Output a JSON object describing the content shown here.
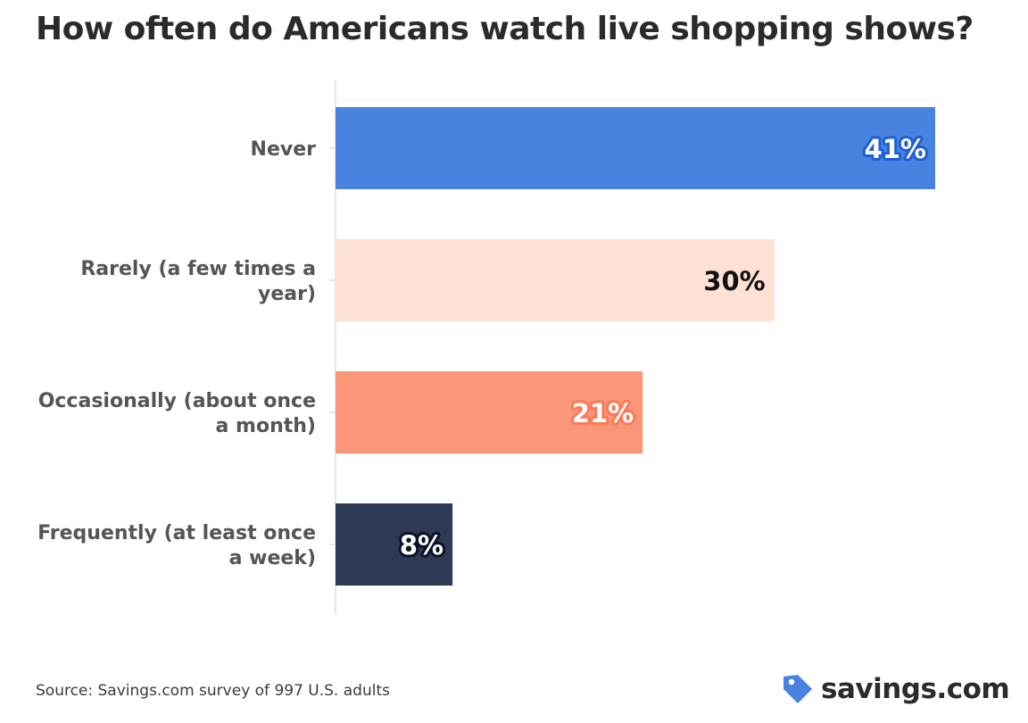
{
  "title": "How often do Americans watch live shopping shows?",
  "source": "Source: Savings.com survey of 997 U.S. adults",
  "brand": {
    "name": "savings.com",
    "icon": "tag-icon",
    "color": "#4a82e0"
  },
  "chart_data": {
    "type": "bar",
    "orientation": "horizontal",
    "categories": [
      [
        "Never"
      ],
      [
        "Rarely (a few times a",
        "year)"
      ],
      [
        "Occasionally (about once",
        "a month)"
      ],
      [
        "Frequently (at least once",
        "a week)"
      ]
    ],
    "values": [
      41,
      30,
      21,
      8
    ],
    "value_labels": [
      "41%",
      "30%",
      "21%",
      "8%"
    ],
    "unit": "%",
    "colors": [
      "#4a82e0",
      "#fde1d5",
      "#fc9679",
      "#2e3a55"
    ],
    "label_colors": [
      "#ffffff",
      "#111111",
      "#ffffff",
      "#ffffff"
    ],
    "label_outline_colors": [
      "#1f5fd6",
      "#fde1d5",
      "#fb7a55",
      "#0b1224"
    ],
    "xlim": [
      0,
      41
    ],
    "grid": false,
    "legend": "none"
  }
}
